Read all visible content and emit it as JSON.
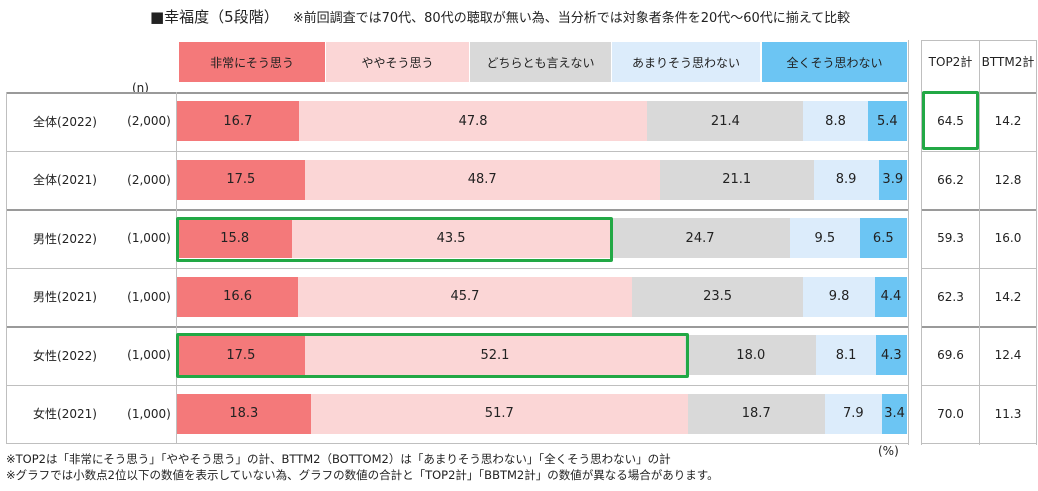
{
  "title": "■幸福度（5段階）",
  "title_note": "※前回調査では70代、80代の聴取が無い為、当分析では対象者条件を20代～60代に揃えて比較",
  "n_header": "(n)",
  "unit_label": "(%)",
  "side_headers": {
    "top2": "TOP2計",
    "bttm2": "BTTM2計"
  },
  "footnotes": [
    "※TOP2は「非常にそう思う」「ややそう思う」の計、BTTM2（BOTTOM2）は「あまりそう思わない」「全くそう思わない」の計",
    "※グラフでは小数点2位以下の数値を表示していない為、グラフの数値の合計と「TOP2計」「BBTM2計」の数値が異なる場合があります。"
  ],
  "colors": {
    "very": "#f4797a",
    "somewhat": "#fbd6d6",
    "neither": "#d9d9d9",
    "not_much": "#dcecfb",
    "not_at_all": "#6cc5f3",
    "highlight": "#22a845"
  },
  "chart_data": {
    "type": "bar",
    "orientation": "horizontal",
    "stacked": true,
    "series_names": [
      "非常にそう思う",
      "ややそう思う",
      "どちらとも言えない",
      "あまりそう思わない",
      "全くそう思わない"
    ],
    "rows": [
      {
        "label": "全体(2022)",
        "n": "(2,000)",
        "values": [
          16.7,
          47.8,
          21.4,
          8.8,
          5.4
        ],
        "top2": "64.5",
        "bttm2": "14.2"
      },
      {
        "label": "全体(2021)",
        "n": "(2,000)",
        "values": [
          17.5,
          48.7,
          21.1,
          8.9,
          3.9
        ],
        "top2": "66.2",
        "bttm2": "12.8"
      },
      {
        "label": "男性(2022)",
        "n": "(1,000)",
        "values": [
          15.8,
          43.5,
          24.7,
          9.5,
          6.5
        ],
        "top2": "59.3",
        "bttm2": "16.0"
      },
      {
        "label": "男性(2021)",
        "n": "(1,000)",
        "values": [
          16.6,
          45.7,
          23.5,
          9.8,
          4.4
        ],
        "top2": "62.3",
        "bttm2": "14.2"
      },
      {
        "label": "女性(2022)",
        "n": "(1,000)",
        "values": [
          17.5,
          52.1,
          18.0,
          8.1,
          4.3
        ],
        "top2": "69.6",
        "bttm2": "12.4"
      },
      {
        "label": "女性(2021)",
        "n": "(1,000)",
        "values": [
          18.3,
          51.7,
          18.7,
          7.9,
          3.4
        ],
        "top2": "70.0",
        "bttm2": "11.3"
      }
    ],
    "xlim": [
      0,
      100
    ]
  }
}
